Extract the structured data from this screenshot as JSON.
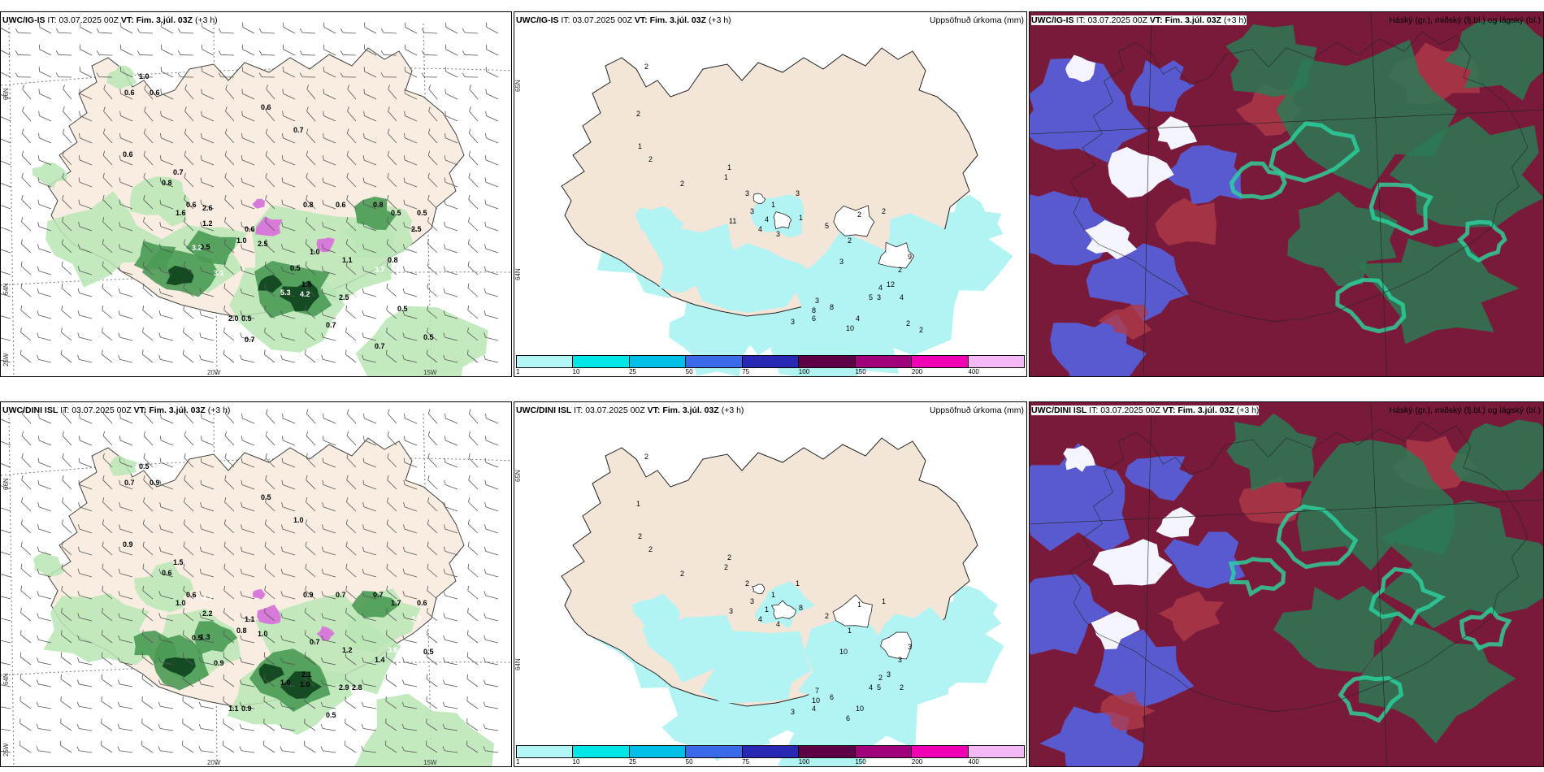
{
  "rows": [
    {
      "model_name": "UWC/IG-IS",
      "header_it_label": "IT:",
      "header_it_value": "03.07.2025 00Z",
      "header_vt_label": "VT:",
      "header_vt_value": "Fim. 3.júl. 03Z",
      "header_lead": "(+3 h)",
      "wind_panel": {
        "axis_labels": [
          "66N",
          "64N",
          "25W",
          "20W",
          "15W"
        ],
        "values": [
          "1.0",
          "0.6",
          "0.6",
          "0.6",
          "0.7",
          "0.6",
          "0.7",
          "0.8",
          "0.6",
          "1.6",
          "2.6",
          "1.2",
          "0.6",
          "1.0",
          "2.5",
          "0.8",
          "0.6",
          "0.8",
          "0.5",
          "0.5",
          "2.5",
          "0.5",
          "3.2",
          "1.0",
          "3.1",
          "1.1",
          "0.8",
          "3.7",
          "1.5",
          "5.3",
          "4.2",
          "2.5",
          "3.2",
          "4.5",
          "2.0",
          "0.5",
          "0.7",
          "0.5",
          "3.9",
          "0.5",
          "0.7",
          "0.7",
          "0.5"
        ]
      },
      "precip_panel": {
        "title": "Uppsöfnuð úrkoma (mm)",
        "axis_labels": [
          "65N",
          "64N"
        ],
        "values": [
          "2",
          "2",
          "1",
          "2",
          "2",
          "1",
          "1",
          "3",
          "3",
          "1",
          "4",
          "3",
          "11",
          "4",
          "3",
          "5",
          "1",
          "2",
          "3",
          "2",
          "2",
          "12",
          "4",
          "2",
          "9",
          "3",
          "3",
          "8",
          "6",
          "3",
          "8",
          "10",
          "4",
          "5",
          "4",
          "2",
          "2"
        ]
      },
      "cloud_panel": {
        "title": "Háský (gr.), miðský (fj.bl.) og lágský (bl.)"
      }
    },
    {
      "model_name": "UWC/DINI ISL",
      "header_it_label": "IT:",
      "header_it_value": "03.07.2025 00Z",
      "header_vt_label": "VT:",
      "header_vt_value": "Fim. 3.júl. 03Z",
      "header_lead": "(+3 h)",
      "wind_panel": {
        "axis_labels": [
          "66N",
          "64N",
          "25W",
          "20W",
          "15W"
        ],
        "values": [
          "0.5",
          "0.7",
          "0.9",
          "0.5",
          "1.0",
          "0.9",
          "1.5",
          "0.6",
          "0.6",
          "1.0",
          "4.7",
          "2.2",
          "1.1",
          "0.8",
          "1.0",
          "0.9",
          "0.7",
          "0.7",
          "1.7",
          "0.6",
          "3.7",
          "1.3",
          "0.5",
          "0.7",
          "0.9",
          "1.2",
          "3.6",
          "1.4",
          "2.1",
          "1.0",
          "1.0",
          "2.9",
          "2.8",
          "0.5",
          "1.1",
          "0.9",
          "0.5"
        ]
      },
      "precip_panel": {
        "title": "Uppsöfnuð úrkoma (mm)",
        "axis_labels": [
          "65N",
          "64N"
        ],
        "values": [
          "2",
          "1",
          "2",
          "2",
          "2",
          "2",
          "2",
          "2",
          "3",
          "1",
          "1",
          "1",
          "3",
          "4",
          "4",
          "2",
          "8",
          "1",
          "10",
          "1",
          "1",
          "3",
          "2",
          "3",
          "3",
          "5",
          "7",
          "10",
          "4",
          "3",
          "6",
          "6",
          "10",
          "4",
          "2"
        ]
      },
      "cloud_panel": {
        "title": "Háský (gr.), miðský (fj.bl.) og lágský (bl.)"
      }
    }
  ],
  "legend": {
    "labels": [
      "1",
      "10",
      "25",
      "50",
      "75",
      "100",
      "150",
      "200",
      "400"
    ],
    "colors": [
      "#b3f6f6",
      "#00e6e6",
      "#00c0e8",
      "#3a6ae8",
      "#2828b4",
      "#5e0046",
      "#a0007a",
      "#f000b4",
      "#f4b8f4"
    ]
  },
  "colors": {
    "land": "#f8ede0",
    "precip_land": "#f3e6d8",
    "precip_light": "#b2f3f3",
    "green_light": "#b8e6b4",
    "green_mid": "#4a9a55",
    "green_dark": "#154b22",
    "magenta": "#d77ad9",
    "cloud_maroon": "#7a1a3a",
    "cloud_blue": "#5a5ad0",
    "cloud_green": "#2a7a55",
    "cloud_teal": "#2ad6a0"
  }
}
